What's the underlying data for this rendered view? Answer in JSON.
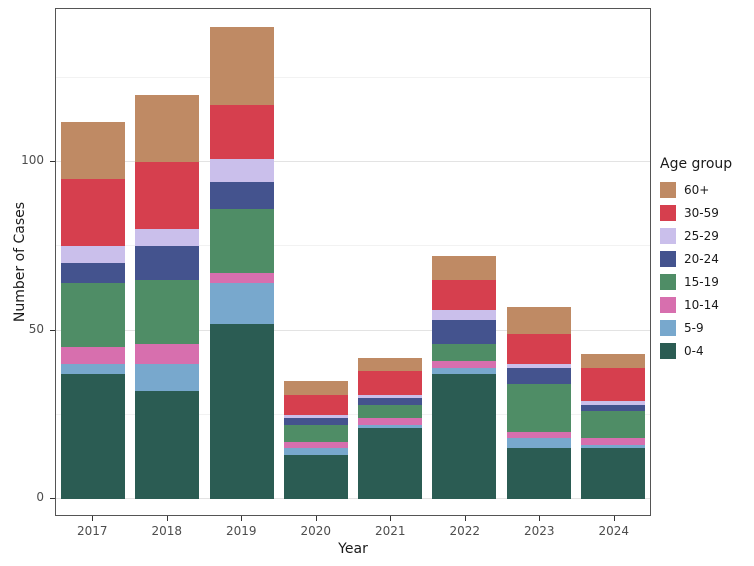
{
  "chart_data": {
    "type": "bar",
    "stacked": true,
    "title": "",
    "xlabel": "Year",
    "ylabel": "Number of Cases",
    "categories": [
      "2017",
      "2018",
      "2019",
      "2020",
      "2021",
      "2022",
      "2023",
      "2024"
    ],
    "legend_title": "Age group",
    "legend_position": "right",
    "ylim": [
      0,
      147
    ],
    "y_ticks": [
      0,
      50,
      100
    ],
    "y_minor_ticks": [
      25,
      75,
      125
    ],
    "grid": true,
    "totals": [
      112,
      120,
      140,
      35,
      42,
      72,
      57,
      43
    ],
    "series": [
      {
        "name": "60+",
        "color": "#bf8a64",
        "values": [
          17,
          20,
          23,
          4,
          4,
          7,
          8,
          4
        ]
      },
      {
        "name": "30-59",
        "color": "#d63f4e",
        "values": [
          20,
          20,
          16,
          6,
          7,
          9,
          9,
          10
        ]
      },
      {
        "name": "25-29",
        "color": "#cabfeb",
        "values": [
          5,
          5,
          7,
          1,
          1,
          3,
          1,
          1
        ]
      },
      {
        "name": "20-24",
        "color": "#44538e",
        "values": [
          6,
          10,
          8,
          2,
          2,
          7,
          5,
          2
        ]
      },
      {
        "name": "15-19",
        "color": "#4f8d66",
        "values": [
          19,
          19,
          19,
          5,
          4,
          5,
          14,
          8
        ]
      },
      {
        "name": "10-14",
        "color": "#d76fae",
        "values": [
          5,
          6,
          3,
          2,
          2,
          2,
          2,
          2
        ]
      },
      {
        "name": "5-9",
        "color": "#78a8cd",
        "values": [
          3,
          8,
          12,
          2,
          1,
          2,
          3,
          1
        ]
      },
      {
        "name": "0-4",
        "color": "#2b5c53",
        "values": [
          37,
          32,
          52,
          13,
          21,
          37,
          15,
          15
        ]
      }
    ]
  },
  "theme": {
    "background": "#ffffff",
    "panel_border": "#555555",
    "grid_major": "#e3e3e3",
    "grid_minor": "#f2f2f2",
    "tick_color": "#333333",
    "tick_text_color": "#4d4d4d",
    "title_text_color": "#1a1a1a"
  }
}
